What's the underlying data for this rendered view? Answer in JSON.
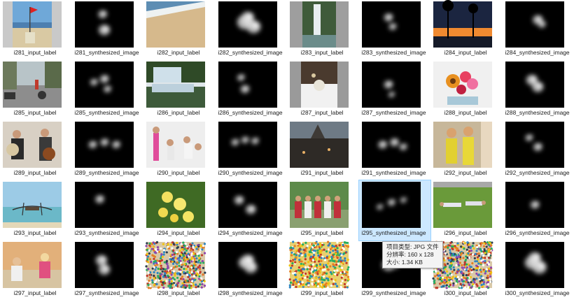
{
  "files": [
    {
      "label": "i281_input_label",
      "kind": "input",
      "scene": "beach-flag"
    },
    {
      "label": "i281_synthesized_image",
      "kind": "synth",
      "blobs": [
        [
          0.5,
          0.62,
          0.16
        ],
        [
          0.47,
          0.28,
          0.12
        ]
      ]
    },
    {
      "label": "i282_input_label",
      "kind": "input",
      "scene": "beach"
    },
    {
      "label": "i282_synthesized_image",
      "kind": "synth",
      "blobs": [
        [
          0.45,
          0.45,
          0.22
        ],
        [
          0.6,
          0.55,
          0.2
        ],
        [
          0.5,
          0.35,
          0.18
        ]
      ]
    },
    {
      "label": "i283_input_label",
      "kind": "input",
      "scene": "waterfall"
    },
    {
      "label": "i283_synthesized_image",
      "kind": "synth",
      "blobs": [
        [
          0.45,
          0.35,
          0.12
        ],
        [
          0.52,
          0.55,
          0.1
        ]
      ]
    },
    {
      "label": "i284_input_label",
      "kind": "input",
      "scene": "sunset"
    },
    {
      "label": "i284_synthesized_image",
      "kind": "synth",
      "blobs": [
        [
          0.55,
          0.4,
          0.14
        ],
        [
          0.62,
          0.5,
          0.1
        ]
      ]
    },
    {
      "label": "i285_input_label",
      "kind": "input",
      "scene": "street"
    },
    {
      "label": "i285_synthesized_image",
      "kind": "synth",
      "blobs": [
        [
          0.32,
          0.45,
          0.1
        ],
        [
          0.5,
          0.38,
          0.12
        ],
        [
          0.55,
          0.6,
          0.1
        ]
      ]
    },
    {
      "label": "i286_input_label",
      "kind": "input",
      "scene": "pond"
    },
    {
      "label": "i286_synthesized_image",
      "kind": "synth",
      "blobs": [
        [
          0.45,
          0.6,
          0.12
        ],
        [
          0.38,
          0.35,
          0.1
        ]
      ]
    },
    {
      "label": "i287_input_label",
      "kind": "input",
      "scene": "table"
    },
    {
      "label": "i287_synthesized_image",
      "kind": "synth",
      "blobs": [
        [
          0.45,
          0.5,
          0.12
        ],
        [
          0.5,
          0.72,
          0.08
        ]
      ]
    },
    {
      "label": "i288_input_label",
      "kind": "input",
      "scene": "flowers"
    },
    {
      "label": "i288_synthesized_image",
      "kind": "synth",
      "blobs": [
        [
          0.45,
          0.4,
          0.16
        ],
        [
          0.55,
          0.55,
          0.16
        ]
      ]
    },
    {
      "label": "i289_input_label",
      "kind": "input",
      "scene": "musicians"
    },
    {
      "label": "i289_synthesized_image",
      "kind": "synth",
      "blobs": [
        [
          0.3,
          0.5,
          0.11
        ],
        [
          0.5,
          0.45,
          0.11
        ],
        [
          0.7,
          0.5,
          0.11
        ]
      ]
    },
    {
      "label": "i290_input_label",
      "kind": "input",
      "scene": "party"
    },
    {
      "label": "i290_synthesized_image",
      "kind": "synth",
      "blobs": [
        [
          0.28,
          0.45,
          0.1
        ],
        [
          0.45,
          0.4,
          0.1
        ],
        [
          0.62,
          0.42,
          0.1
        ]
      ]
    },
    {
      "label": "i291_input_label",
      "kind": "input",
      "scene": "town"
    },
    {
      "label": "i291_synthesized_image",
      "kind": "synth",
      "blobs": [
        [
          0.35,
          0.5,
          0.12
        ],
        [
          0.55,
          0.45,
          0.12
        ],
        [
          0.7,
          0.55,
          0.1
        ]
      ]
    },
    {
      "label": "i292_input_label",
      "kind": "input",
      "scene": "girls"
    },
    {
      "label": "i292_synthesized_image",
      "kind": "synth",
      "blobs": [
        [
          0.4,
          0.35,
          0.1
        ],
        [
          0.55,
          0.55,
          0.12
        ]
      ]
    },
    {
      "label": "i293_input_label",
      "kind": "input",
      "scene": "boat"
    },
    {
      "label": "i293_synthesized_image",
      "kind": "synth",
      "blobs": [
        [
          0.42,
          0.38,
          0.12
        ]
      ]
    },
    {
      "label": "i294_input_label",
      "kind": "input",
      "scene": "yellow-flowers"
    },
    {
      "label": "i294_synthesized_image",
      "kind": "synth",
      "blobs": [
        [
          0.35,
          0.4,
          0.13
        ],
        [
          0.55,
          0.6,
          0.14
        ]
      ]
    },
    {
      "label": "i295_input_label",
      "kind": "input",
      "scene": "children"
    },
    {
      "label": "i295_synthesized_image",
      "kind": "synth",
      "selected": true,
      "blobs": [
        [
          0.3,
          0.55,
          0.08
        ],
        [
          0.5,
          0.45,
          0.1
        ],
        [
          0.7,
          0.4,
          0.08
        ]
      ]
    },
    {
      "label": "i296_input_label",
      "kind": "input",
      "scene": "grass"
    },
    {
      "label": "i296_synthesized_image",
      "kind": "synth",
      "blobs": [
        [
          0.5,
          0.5,
          0.12
        ]
      ]
    },
    {
      "label": "i297_input_label",
      "kind": "input",
      "scene": "kids-wall"
    },
    {
      "label": "i297_synthesized_image",
      "kind": "synth",
      "blobs": [
        [
          0.45,
          0.4,
          0.16
        ],
        [
          0.5,
          0.6,
          0.16
        ]
      ]
    },
    {
      "label": "i298_input_label",
      "kind": "input",
      "scene": "crowd"
    },
    {
      "label": "i298_synthesized_image",
      "kind": "synth",
      "blobs": [
        [
          0.45,
          0.45,
          0.18
        ],
        [
          0.55,
          0.55,
          0.18
        ],
        [
          0.5,
          0.4,
          0.18
        ]
      ]
    },
    {
      "label": "i299_input_label",
      "kind": "input",
      "scene": "crowd-yellow"
    },
    {
      "label": "i299_synthesized_image",
      "kind": "synth",
      "blobs": [
        [
          0.45,
          0.5,
          0.18
        ],
        [
          0.55,
          0.45,
          0.18
        ]
      ]
    },
    {
      "label": "i300_input_label",
      "kind": "input",
      "scene": "crowd"
    },
    {
      "label": "i300_synthesized_image",
      "kind": "synth",
      "blobs": [
        [
          0.45,
          0.45,
          0.2
        ],
        [
          0.58,
          0.55,
          0.2
        ],
        [
          0.5,
          0.35,
          0.18
        ]
      ]
    }
  ],
  "tooltip": {
    "type_line": "项目类型: JPG 文件",
    "size_line": "分辨率: 160 x 128",
    "filesize_line": "大小: 1.34 KB"
  }
}
